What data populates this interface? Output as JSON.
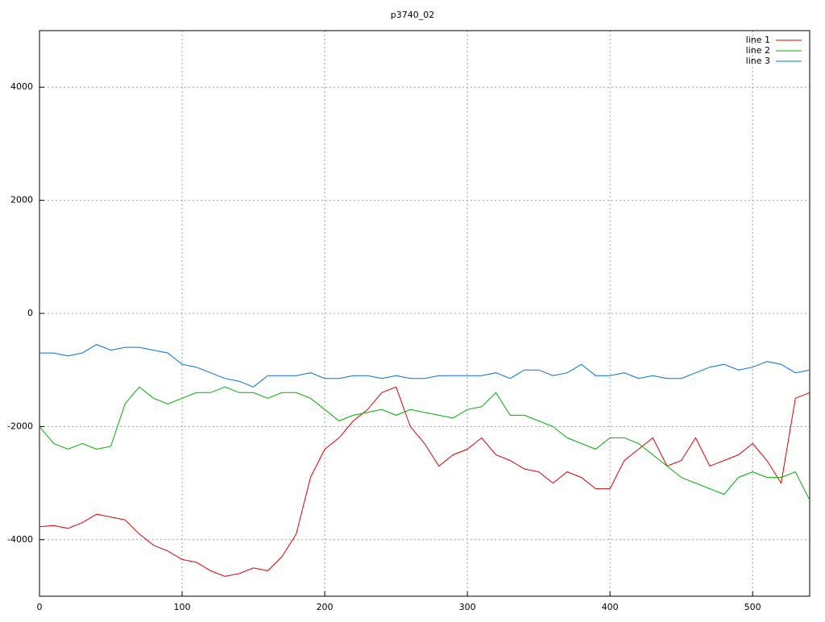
{
  "chart_data": {
    "type": "line",
    "title": "p3740_02",
    "x": [
      0,
      10,
      20,
      30,
      40,
      50,
      60,
      70,
      80,
      90,
      100,
      110,
      120,
      130,
      140,
      150,
      160,
      170,
      180,
      190,
      200,
      210,
      220,
      230,
      240,
      250,
      260,
      270,
      280,
      290,
      300,
      310,
      320,
      330,
      340,
      350,
      360,
      370,
      380,
      390,
      400,
      410,
      420,
      430,
      440,
      450,
      460,
      470,
      480,
      490,
      500,
      510,
      520,
      530,
      540
    ],
    "series": [
      {
        "name": "line 1",
        "color": "#e00000",
        "values": [
          -3770,
          -3750,
          -3800,
          -3700,
          -3550,
          -3600,
          -3650,
          -3900,
          -4100,
          -4200,
          -4350,
          -4400,
          -4550,
          -4650,
          -4600,
          -4500,
          -4550,
          -4300,
          -3900,
          -2900,
          -2400,
          -2200,
          -1900,
          -1700,
          -1400,
          -1300,
          -2000,
          -2300,
          -2700,
          -2500,
          -2400,
          -2200,
          -2500,
          -2600,
          -2750,
          -2800,
          -3000,
          -2800,
          -2900,
          -3100,
          -3100,
          -2600,
          -2400,
          -2200,
          -2700,
          -2600,
          -2200,
          -2700,
          -2600,
          -2500,
          -2300,
          -2600,
          -3000,
          -1500,
          -1400
        ]
      },
      {
        "name": "line 2",
        "color": "#00b000",
        "values": [
          -2000,
          -2300,
          -2400,
          -2300,
          -2400,
          -2350,
          -1600,
          -1300,
          -1500,
          -1600,
          -1500,
          -1400,
          -1400,
          -1300,
          -1400,
          -1400,
          -1500,
          -1400,
          -1400,
          -1500,
          -1700,
          -1900,
          -1800,
          -1750,
          -1700,
          -1800,
          -1700,
          -1750,
          -1800,
          -1850,
          -1700,
          -1650,
          -1400,
          -1800,
          -1800,
          -1900,
          -2000,
          -2200,
          -2300,
          -2400,
          -2200,
          -2200,
          -2300,
          -2500,
          -2700,
          -2900,
          -3000,
          -3100,
          -3200,
          -2900,
          -2800,
          -2900,
          -2900,
          -2800,
          -3300
        ]
      },
      {
        "name": "line 3",
        "color": "#0070e0",
        "values": [
          -700,
          -700,
          -750,
          -700,
          -550,
          -650,
          -600,
          -600,
          -650,
          -700,
          -900,
          -950,
          -1050,
          -1150,
          -1200,
          -1300,
          -1100,
          -1100,
          -1100,
          -1050,
          -1150,
          -1150,
          -1100,
          -1100,
          -1150,
          -1100,
          -1150,
          -1150,
          -1100,
          -1100,
          -1100,
          -1100,
          -1050,
          -1150,
          -1000,
          -1000,
          -1100,
          -1050,
          -900,
          -1100,
          -1100,
          -1050,
          -1150,
          -1100,
          -1150,
          -1150,
          -1050,
          -950,
          -900,
          -1000,
          -950,
          -850,
          -900,
          -1050,
          -1000
        ]
      }
    ],
    "xlim": [
      0,
      540
    ],
    "xticks": [
      0,
      100,
      200,
      300,
      400,
      500
    ],
    "ylim": [
      -5000,
      5000
    ],
    "yticks": [
      -4000,
      -2000,
      0,
      2000,
      4000
    ],
    "grid": true,
    "legend": "top-right"
  }
}
